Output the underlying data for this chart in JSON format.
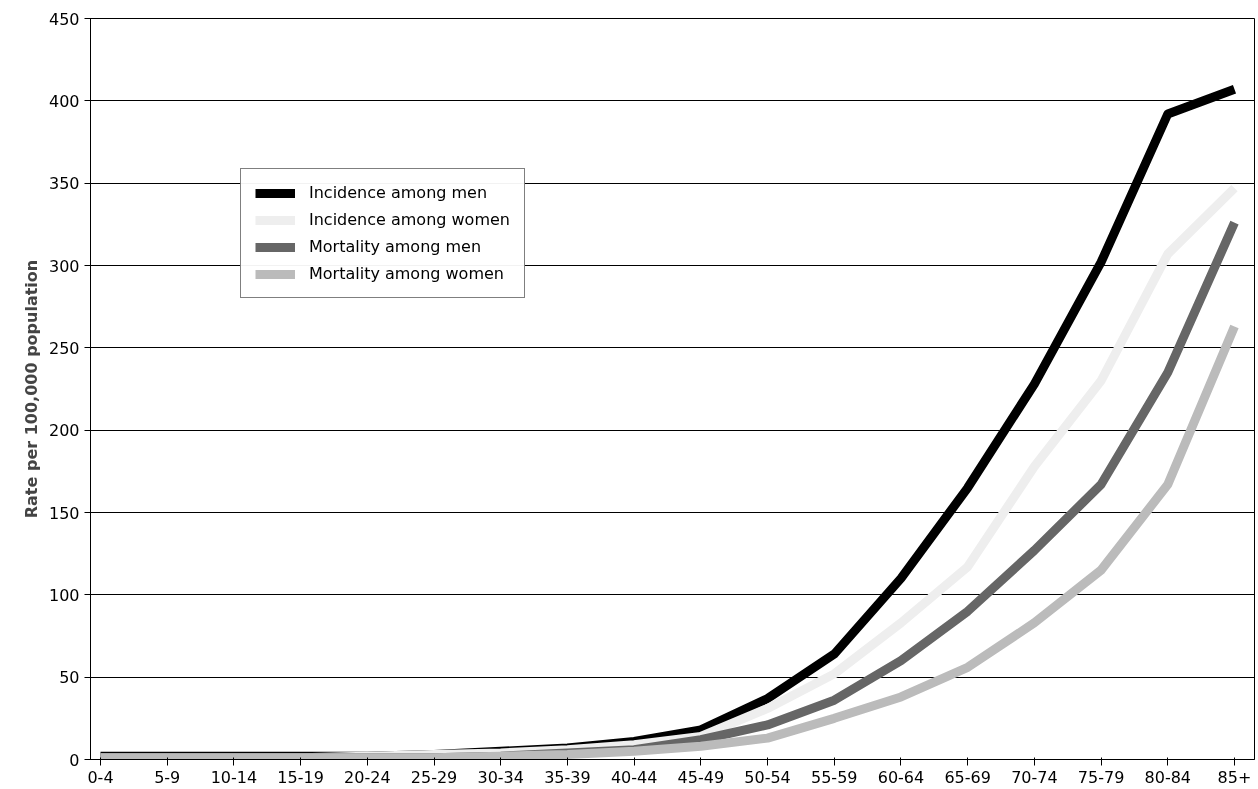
{
  "chart_data": {
    "type": "line",
    "ylabel": "Rate per 100,000 population",
    "categories": [
      "0-4",
      "5-9",
      "10-14",
      "15-19",
      "20-24",
      "25-29",
      "30-34",
      "35-39",
      "40-44",
      "45-49",
      "50-54",
      "55-59",
      "60-64",
      "65-69",
      "70-74",
      "75-79",
      "80-84",
      "85+"
    ],
    "series": [
      {
        "name": "Incidence among men",
        "color": "#000000",
        "values": [
          2,
          2,
          2,
          2,
          2,
          3,
          5,
          7,
          11,
          18,
          37,
          64,
          110,
          165,
          228,
          302,
          392,
          407
        ]
      },
      {
        "name": "Incidence among women",
        "color": "#eeeeee",
        "values": [
          1,
          1,
          1,
          1,
          2,
          3,
          4,
          6,
          9,
          14,
          31,
          52,
          83,
          117,
          178,
          230,
          307,
          347
        ]
      },
      {
        "name": "Mortality among men",
        "color": "#666666",
        "values": [
          1,
          1,
          1,
          1,
          1,
          1,
          2,
          4,
          6,
          12,
          21,
          36,
          60,
          90,
          127,
          167,
          235,
          326
        ]
      },
      {
        "name": "Mortality among women",
        "color": "#bbbbbb",
        "values": [
          1,
          1,
          1,
          1,
          1,
          1,
          2,
          3,
          5,
          8,
          13,
          25,
          38,
          56,
          83,
          115,
          167,
          263
        ]
      }
    ],
    "ylim": [
      0,
      450
    ],
    "yticks": [
      0,
      50,
      100,
      150,
      200,
      250,
      300,
      350,
      400,
      450
    ],
    "grid": "y",
    "legend": "top left",
    "marker": "none",
    "line_style": "solid"
  }
}
